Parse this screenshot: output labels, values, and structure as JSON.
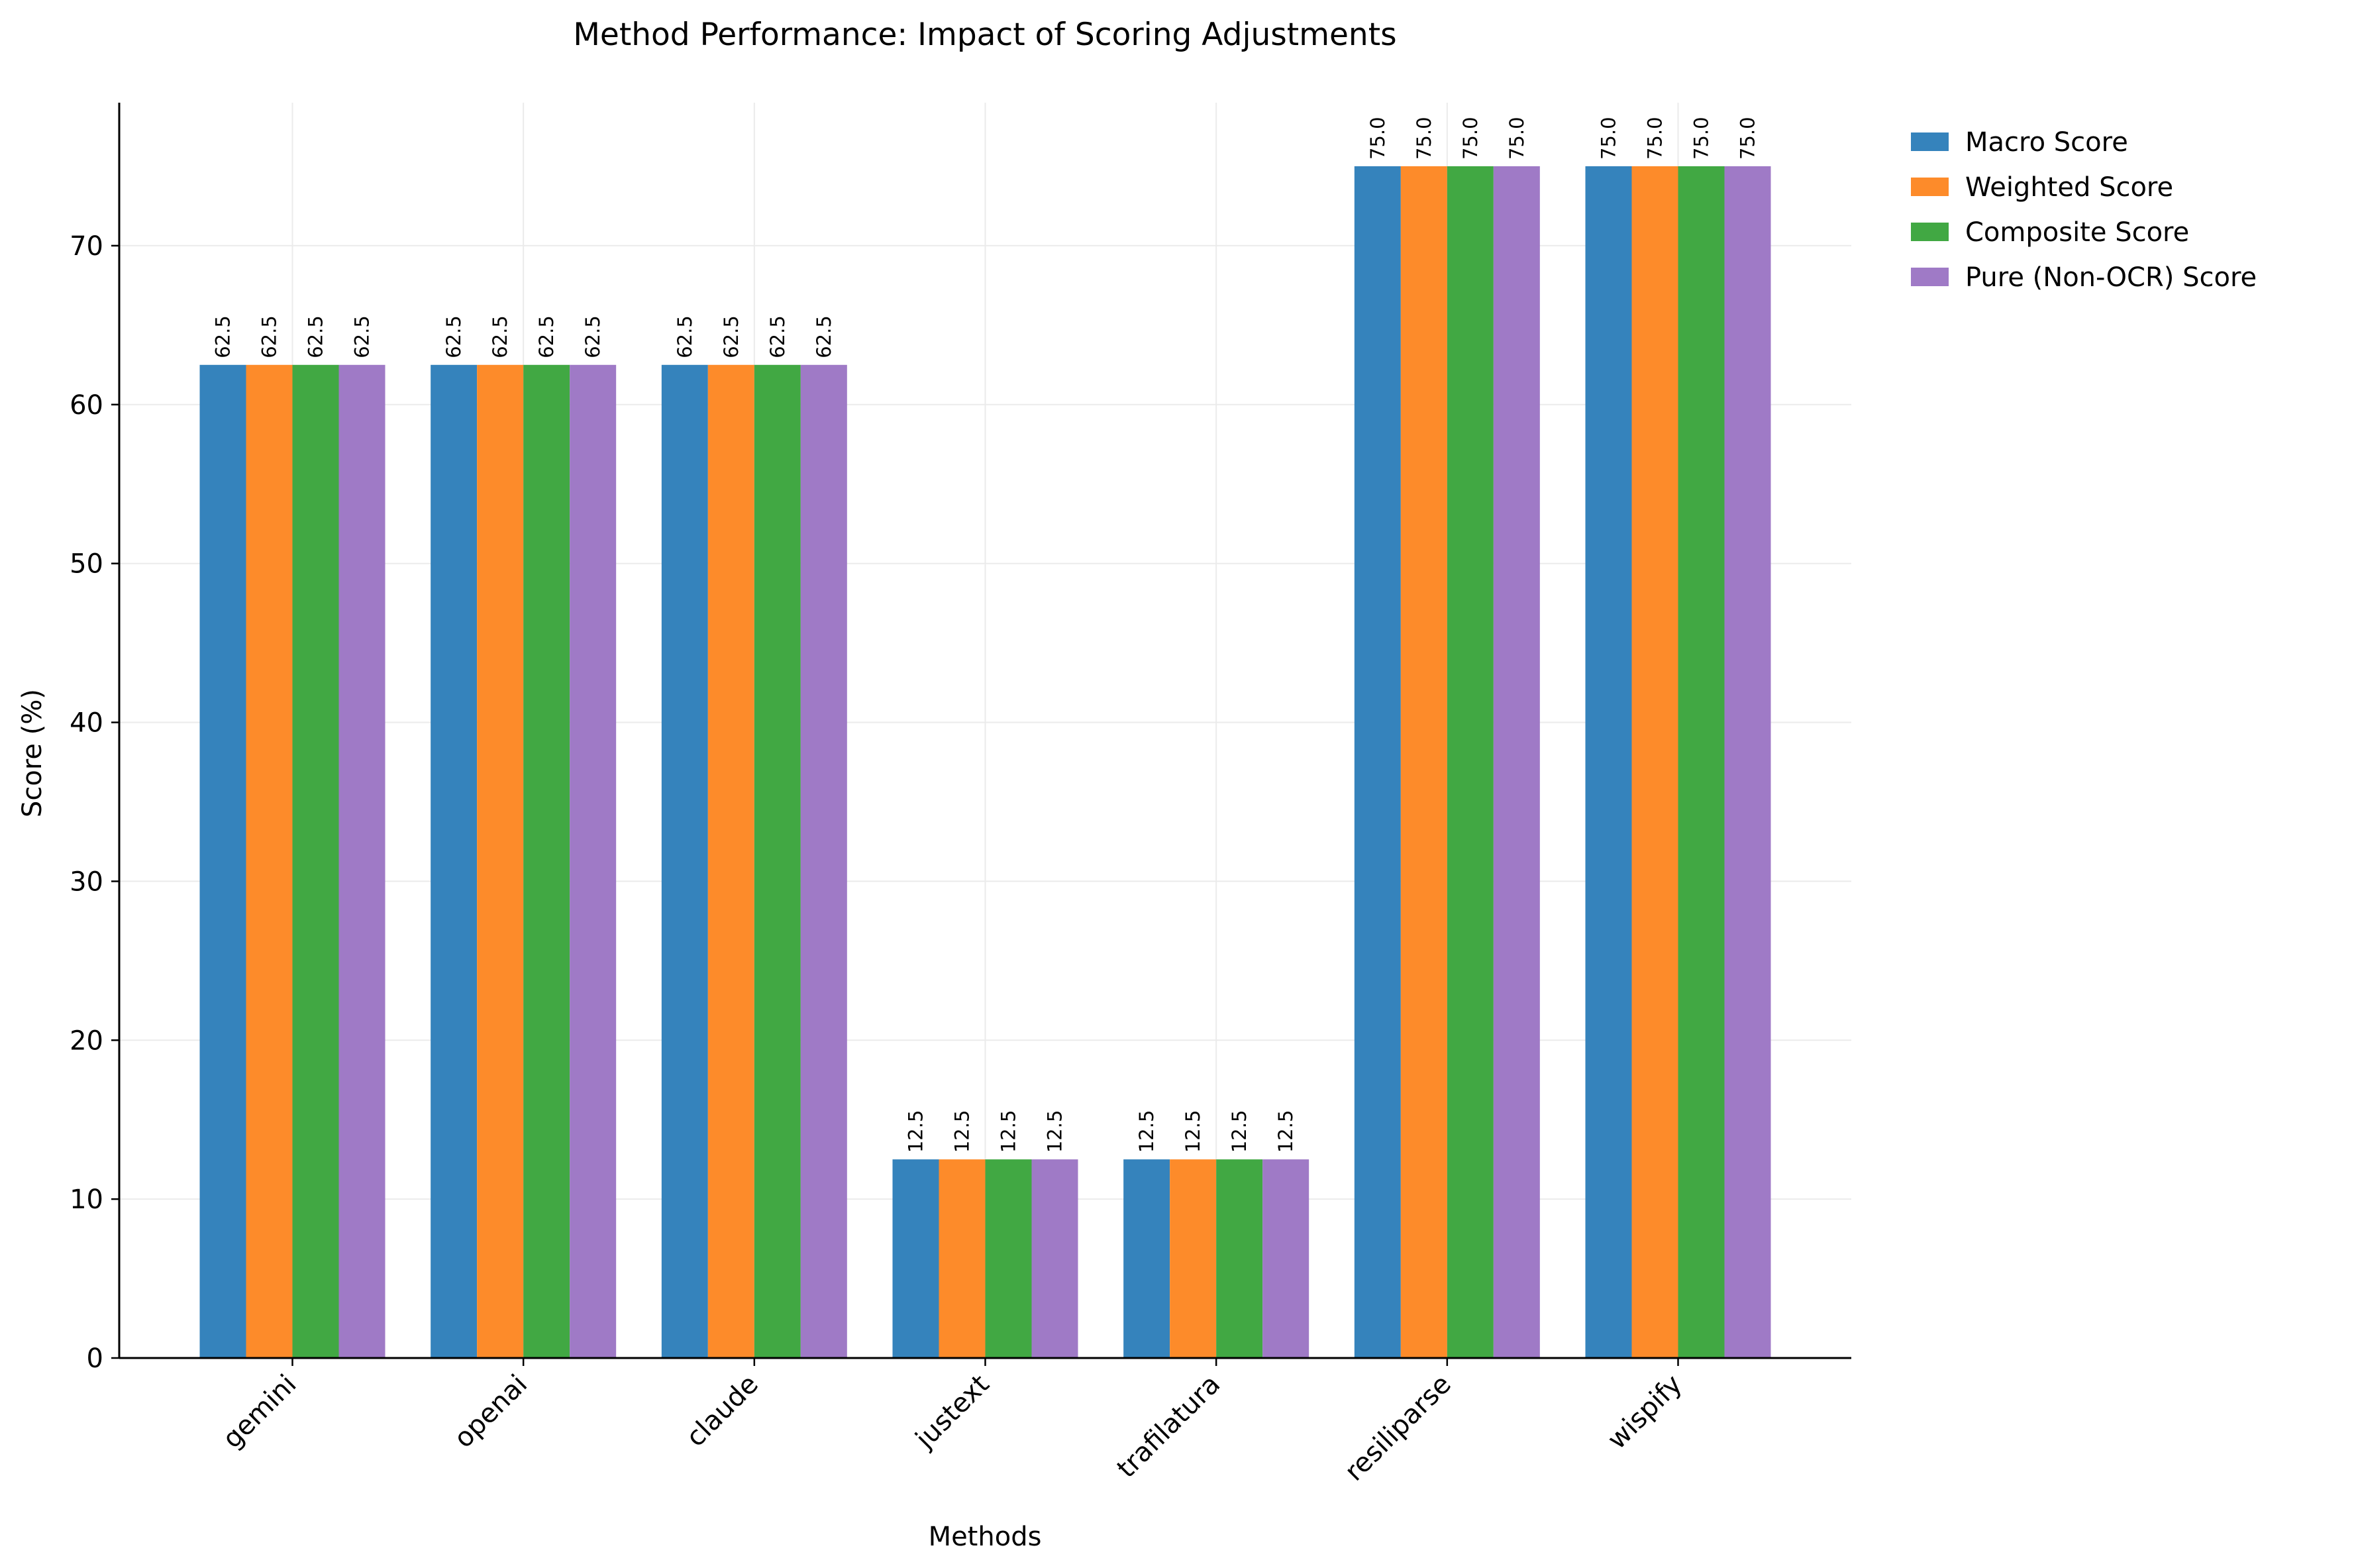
{
  "chart_data": {
    "type": "bar",
    "title": "Method Performance: Impact of Scoring Adjustments",
    "xlabel": "Methods",
    "ylabel": "Score (%)",
    "ylim": [
      0,
      79
    ],
    "yticks": [
      0,
      10,
      20,
      30,
      40,
      50,
      60,
      70
    ],
    "grid": true,
    "legend_position": "outside-top-right",
    "categories": [
      "gemini",
      "openai",
      "claude",
      "justext",
      "trafilatura",
      "resiliparse",
      "wispify"
    ],
    "series": [
      {
        "name": "Macro Score",
        "color": "#3583bc",
        "values": [
          62.5,
          62.5,
          62.5,
          12.5,
          12.5,
          75.0,
          75.0
        ]
      },
      {
        "name": "Weighted Score",
        "color": "#fd8b2a",
        "values": [
          62.5,
          62.5,
          62.5,
          12.5,
          12.5,
          75.0,
          75.0
        ]
      },
      {
        "name": "Composite Score",
        "color": "#41a843",
        "values": [
          62.5,
          62.5,
          62.5,
          12.5,
          12.5,
          75.0,
          75.0
        ]
      },
      {
        "name": "Pure (Non-OCR) Score",
        "color": "#9f7ac6",
        "values": [
          62.5,
          62.5,
          62.5,
          12.5,
          12.5,
          75.0,
          75.0
        ]
      }
    ]
  }
}
